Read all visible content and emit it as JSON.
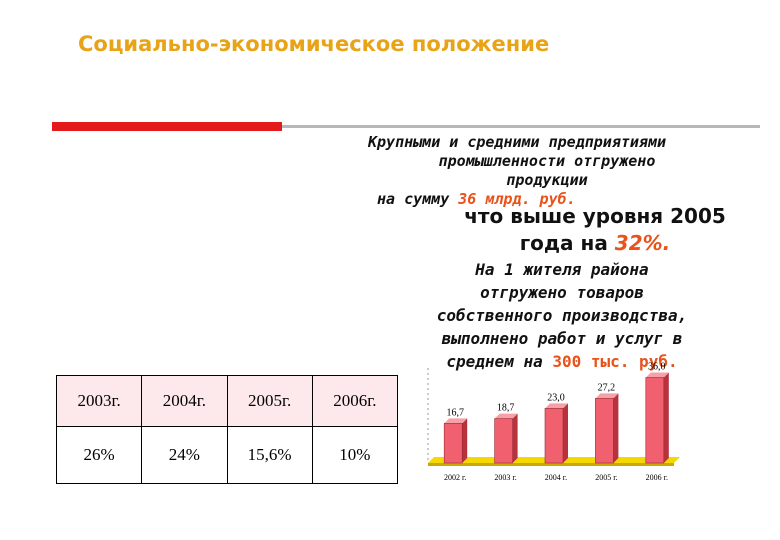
{
  "header": {
    "title": "Социально-экономическое положение"
  },
  "text_block": {
    "line1": "Крупными и средними предприятиями",
    "line2": "промышленности отгружено",
    "line3": "продукции",
    "line4_prefix": "на сумму ",
    "line4_amount": "36 млрд. руб.",
    "overlay_prefix": "что выше уровня 2005",
    "overlay_suffix_prefix": "года на ",
    "overlay_pct": "32%.",
    "per_capita_1": "На 1 жителя района",
    "per_capita_2": "отгружено товаров",
    "per_capita_3": "собственного производства,",
    "per_capita_4": "выполнено работ и услуг в",
    "per_capita_5_prefix": "среднем на ",
    "per_capita_5_amount": "300 тыс. руб."
  },
  "table": {
    "years": [
      "2003г.",
      "2004г.",
      "2005г.",
      "2006г."
    ],
    "values": [
      "26%",
      "24%",
      "15,6%",
      "10%"
    ]
  },
  "colors": {
    "title": "#e8a317",
    "accent": "#e8521b",
    "rule_red": "#e41b1b",
    "bar_fill": "#f0606e",
    "chart_floor": "#f5d800"
  },
  "chart_data": {
    "type": "bar",
    "categories": [
      "2002 г.",
      "2003 г.",
      "2004 г.",
      "2005 г.",
      "2006 г."
    ],
    "values": [
      16.7,
      18.7,
      23.0,
      27.2,
      36.0
    ],
    "value_labels": [
      "16,7",
      "18,7",
      "23,0",
      "27,2",
      "36,0"
    ],
    "title": "",
    "xlabel": "",
    "ylabel": "",
    "ylim": [
      0,
      40
    ],
    "grid": false,
    "legend": "none"
  }
}
